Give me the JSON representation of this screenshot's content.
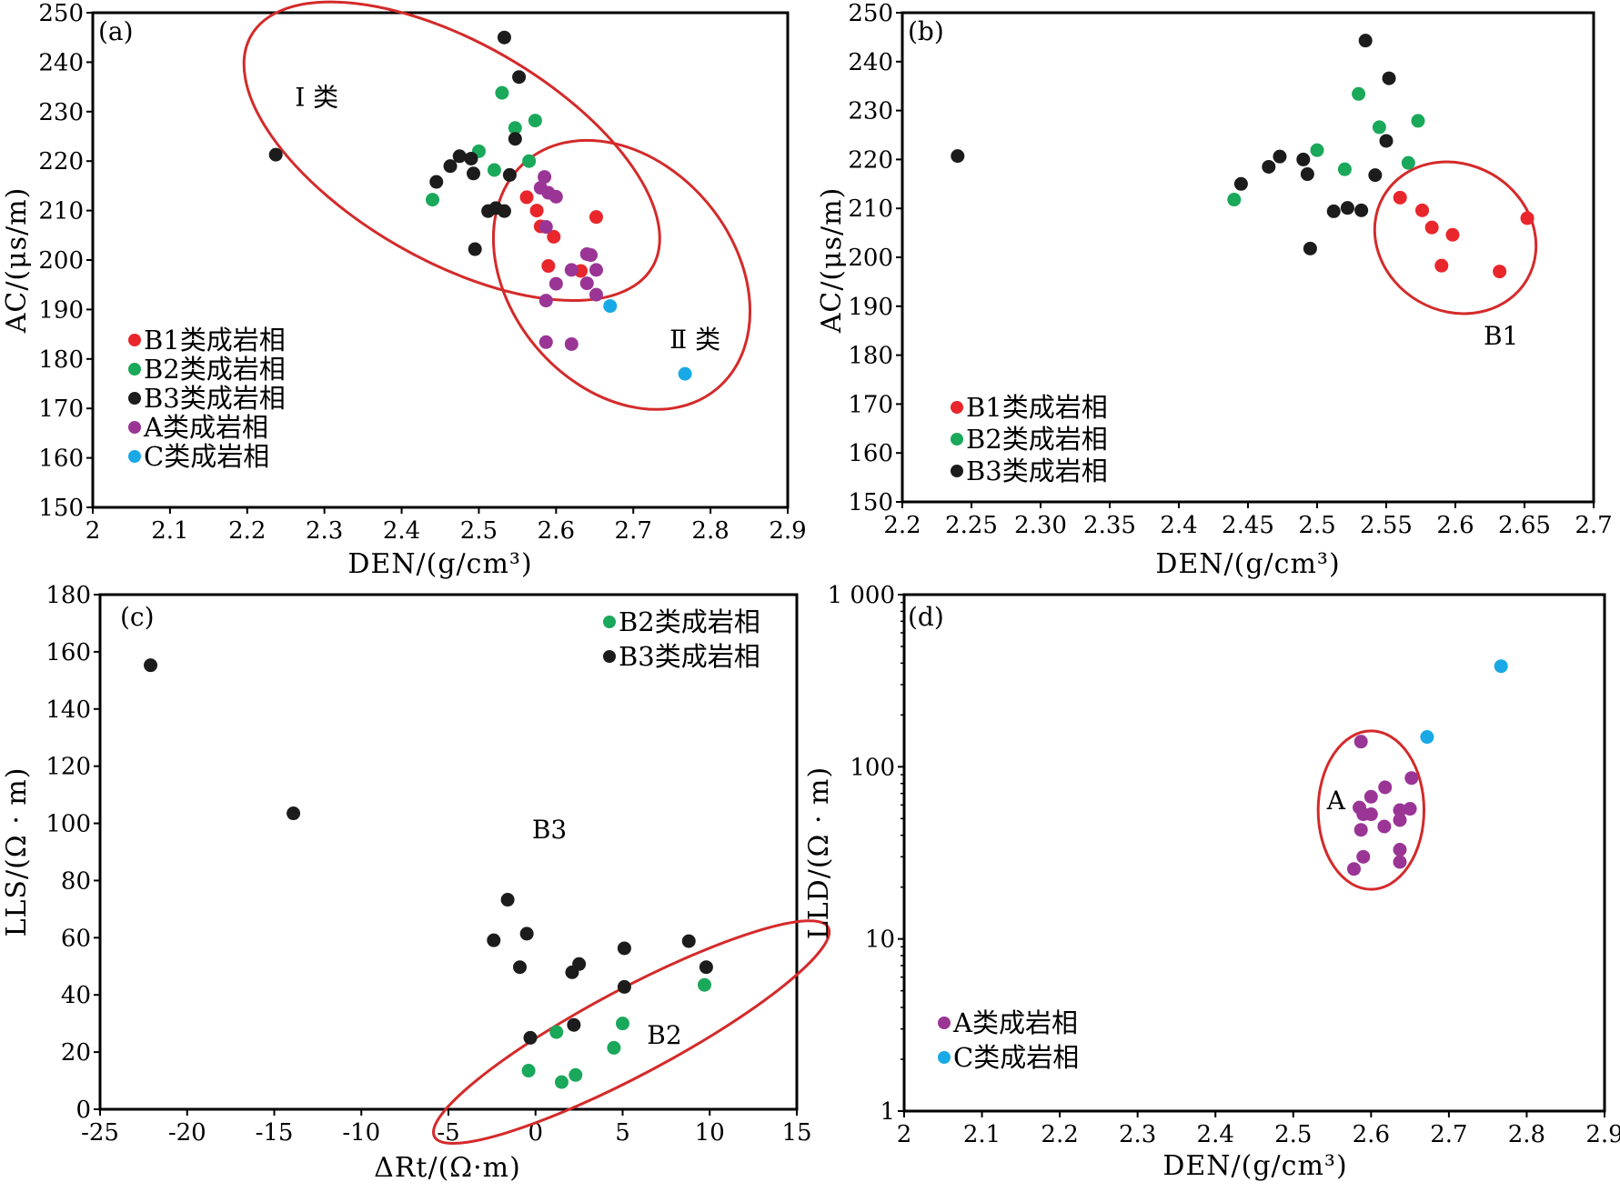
{
  "colors": {
    "B1": "#e8262c",
    "B2": "#1aa85a",
    "B3": "#1c1c1c",
    "A": "#9a3596",
    "C": "#19a9e6",
    "ellipse": "#d42a2a",
    "axis": "#000000"
  },
  "chart_data": [
    {
      "id": "a",
      "type": "scatter",
      "panel_label": "(a)",
      "xlabel": "DEN/(g/cm³)",
      "ylabel": "AC/(μs/m)",
      "xlim": [
        2,
        2.9
      ],
      "ylim": [
        150,
        250
      ],
      "x_ticks": [
        "2",
        "2.1",
        "2.2",
        "2.3",
        "2.4",
        "2.5",
        "2.6",
        "2.7",
        "2.8",
        "2.9"
      ],
      "y_ticks": [
        "150",
        "160",
        "170",
        "180",
        "190",
        "200",
        "210",
        "220",
        "230",
        "240",
        "250"
      ],
      "grid": false,
      "legend_position": "bottom-left",
      "legend": [
        {
          "key": "B1",
          "label": "B1类成岩相"
        },
        {
          "key": "B2",
          "label": "B2类成岩相"
        },
        {
          "key": "B3",
          "label": "B3类成岩相"
        },
        {
          "key": "A",
          "label": "A类成岩相"
        },
        {
          "key": "C",
          "label": "C类成岩相"
        }
      ],
      "annotations": [
        {
          "text": "Ⅰ 类",
          "x": 2.29,
          "y": 233
        },
        {
          "text": "Ⅱ 类",
          "x": 2.78,
          "y": 184
        }
      ],
      "ellipses": [
        {
          "cx": 2.465,
          "cy": 222,
          "rx": 0.3,
          "ry": 22,
          "angle_deg": 30
        },
        {
          "cx": 2.685,
          "cy": 197,
          "rx": 0.145,
          "ry": 30,
          "angle_deg": -40
        }
      ],
      "series": [
        {
          "key": "B1",
          "name": "B1类成岩相",
          "points": [
            [
              2.562,
              212.7
            ],
            [
              2.575,
              210
            ],
            [
              2.58,
              206.8
            ],
            [
              2.597,
              204.7
            ],
            [
              2.59,
              198.8
            ],
            [
              2.632,
              197.8
            ],
            [
              2.652,
              208.7
            ]
          ]
        },
        {
          "key": "B2",
          "name": "B2类成岩相",
          "points": [
            [
              2.44,
              212.2
            ],
            [
              2.5,
              222
            ],
            [
              2.52,
              218.2
            ],
            [
              2.53,
              233.8
            ],
            [
              2.547,
              226.7
            ],
            [
              2.565,
              220
            ],
            [
              2.573,
              228.2
            ]
          ]
        },
        {
          "key": "B3",
          "name": "B3类成岩相",
          "points": [
            [
              2.237,
              221.3
            ],
            [
              2.445,
              215.8
            ],
            [
              2.463,
              219
            ],
            [
              2.475,
              221
            ],
            [
              2.49,
              220.5
            ],
            [
              2.493,
              217.5
            ],
            [
              2.495,
              202.2
            ],
            [
              2.512,
              209.9
            ],
            [
              2.522,
              210.5
            ],
            [
              2.533,
              209.9
            ],
            [
              2.54,
              217.2
            ],
            [
              2.547,
              224.5
            ],
            [
              2.533,
              245
            ],
            [
              2.552,
              237
            ]
          ]
        },
        {
          "key": "A",
          "name": "A类成岩相",
          "points": [
            [
              2.585,
              216.8
            ],
            [
              2.58,
              214.6
            ],
            [
              2.59,
              213.6
            ],
            [
              2.6,
              212.8
            ],
            [
              2.587,
              206.7
            ],
            [
              2.62,
              198
            ],
            [
              2.64,
              201.2
            ],
            [
              2.645,
              201
            ],
            [
              2.652,
              198
            ],
            [
              2.6,
              195.2
            ],
            [
              2.64,
              195.3
            ],
            [
              2.652,
              193
            ],
            [
              2.587,
              191.8
            ],
            [
              2.587,
              183.4
            ],
            [
              2.62,
              183
            ]
          ]
        },
        {
          "key": "C",
          "name": "C类成岩相",
          "points": [
            [
              2.67,
              190.7
            ],
            [
              2.767,
              177
            ]
          ]
        }
      ]
    },
    {
      "id": "b",
      "type": "scatter",
      "panel_label": "(b)",
      "xlabel": "DEN/(g/cm³)",
      "ylabel": "AC/(μs/m)",
      "xlim": [
        2.2,
        2.7
      ],
      "ylim": [
        150,
        250
      ],
      "x_ticks": [
        "2.2",
        "2.25",
        "2.30",
        "2.35",
        "2.4",
        "2.45",
        "2.5",
        "2.55",
        "2.6",
        "2.65",
        "2.7"
      ],
      "y_ticks": [
        "150",
        "160",
        "170",
        "180",
        "190",
        "200",
        "210",
        "220",
        "230",
        "240",
        "250"
      ],
      "grid": false,
      "legend_position": "bottom-left",
      "legend": [
        {
          "key": "B1",
          "label": "B1类成岩相"
        },
        {
          "key": "B2",
          "label": "B2类成岩相"
        },
        {
          "key": "B3",
          "label": "B3类成岩相"
        }
      ],
      "annotations": [
        {
          "text": "B1",
          "x": 2.633,
          "y": 184
        }
      ],
      "ellipses": [
        {
          "cx": 2.6,
          "cy": 204,
          "rx": 0.06,
          "ry": 15,
          "angle_deg": 30
        }
      ],
      "series": [
        {
          "key": "B1",
          "name": "B1类成岩相",
          "points": [
            [
              2.56,
              212.2
            ],
            [
              2.576,
              209.6
            ],
            [
              2.583,
              206.1
            ],
            [
              2.598,
              204.6
            ],
            [
              2.59,
              198.3
            ],
            [
              2.632,
              197.1
            ],
            [
              2.652,
              208
            ]
          ]
        },
        {
          "key": "B2",
          "name": "B2类成岩相",
          "points": [
            [
              2.44,
              211.8
            ],
            [
              2.5,
              221.9
            ],
            [
              2.52,
              218
            ],
            [
              2.53,
              233.4
            ],
            [
              2.545,
              226.6
            ],
            [
              2.566,
              219.3
            ],
            [
              2.573,
              227.9
            ]
          ]
        },
        {
          "key": "B3",
          "name": "B3类成岩相",
          "points": [
            [
              2.24,
              220.7
            ],
            [
              2.445,
              215
            ],
            [
              2.465,
              218.5
            ],
            [
              2.473,
              220.6
            ],
            [
              2.49,
              220
            ],
            [
              2.493,
              217
            ],
            [
              2.495,
              201.8
            ],
            [
              2.512,
              209.4
            ],
            [
              2.522,
              210.1
            ],
            [
              2.532,
              209.6
            ],
            [
              2.542,
              216.8
            ],
            [
              2.55,
              223.8
            ],
            [
              2.535,
              244.3
            ],
            [
              2.552,
              236.6
            ]
          ]
        }
      ]
    },
    {
      "id": "c",
      "type": "scatter",
      "panel_label": "(c)",
      "xlabel": "ΔRt/(Ω·m)",
      "ylabel": "LLS/(Ω · m)",
      "xlim": [
        -25,
        15
      ],
      "ylim": [
        0,
        180
      ],
      "x_ticks": [
        "-25",
        "-20",
        "-15",
        "-10",
        "-5",
        "0",
        "5",
        "10",
        "15"
      ],
      "y_ticks": [
        "0",
        "20",
        "40",
        "60",
        "80",
        "100",
        "120",
        "140",
        "160",
        "180"
      ],
      "grid": false,
      "legend_position": "top-right",
      "legend": [
        {
          "key": "B2",
          "label": "B2类成岩相"
        },
        {
          "key": "B3",
          "label": "B3类成岩相"
        }
      ],
      "annotations": [
        {
          "text": "B3",
          "x": 0.8,
          "y": 98
        },
        {
          "text": "B2",
          "x": 7.4,
          "y": 26
        }
      ],
      "ellipses": [
        {
          "cx": 5.5,
          "cy": 27,
          "rx": 12.8,
          "ry": 15,
          "angle_deg": -28
        }
      ],
      "series": [
        {
          "key": "B2",
          "name": "B2类成岩相",
          "points": [
            [
              9.7,
              43.5
            ],
            [
              5,
              30
            ],
            [
              4.5,
              21.5
            ],
            [
              1.2,
              27
            ],
            [
              -0.4,
              13.5
            ],
            [
              1.5,
              9.5
            ],
            [
              2.3,
              12
            ]
          ]
        },
        {
          "key": "B3",
          "name": "B3类成岩相",
          "points": [
            [
              -22.1,
              155.3
            ],
            [
              -13.9,
              103.5
            ],
            [
              -1.6,
              73.3
            ],
            [
              -2.4,
              59.1
            ],
            [
              -0.5,
              61.4
            ],
            [
              -0.9,
              49.7
            ],
            [
              2.1,
              47.9
            ],
            [
              2.5,
              50.8
            ],
            [
              5.1,
              56.3
            ],
            [
              5.1,
              42.8
            ],
            [
              8.8,
              58.8
            ],
            [
              9.8,
              49.7
            ],
            [
              2.2,
              29.5
            ],
            [
              -0.3,
              25
            ]
          ]
        }
      ]
    },
    {
      "id": "d",
      "type": "scatter",
      "panel_label": "(d)",
      "xlabel": "DEN/(g/cm³)",
      "ylabel": "LLD/(Ω · m)",
      "y_scale": "log",
      "xlim": [
        2,
        2.9
      ],
      "ylim": [
        1,
        1000
      ],
      "x_ticks": [
        "2",
        "2.1",
        "2.2",
        "2.3",
        "2.4",
        "2.5",
        "2.6",
        "2.7",
        "2.8",
        "2.9"
      ],
      "y_ticks": [
        {
          "value": 1,
          "label": "1"
        },
        {
          "value": 10,
          "label": "10"
        },
        {
          "value": 100,
          "label": "100"
        },
        {
          "value": 1000,
          "label": "1 000"
        }
      ],
      "grid": false,
      "legend_position": "bottom-left",
      "legend": [
        {
          "key": "A",
          "label": "A类成岩相"
        },
        {
          "key": "C",
          "label": "C类成岩相"
        }
      ],
      "annotations": [
        {
          "text": "A",
          "x": 2.555,
          "y": 64
        }
      ],
      "ellipses": [
        {
          "cx": 2.6,
          "cy": 56,
          "rx": 0.068,
          "ry_log": 0.46,
          "angle_deg": 0
        }
      ],
      "series": [
        {
          "key": "A",
          "name": "A类成岩相",
          "points": [
            [
              2.587,
              140
            ],
            [
              2.652,
              86
            ],
            [
              2.618,
              76
            ],
            [
              2.6,
              67
            ],
            [
              2.585,
              58
            ],
            [
              2.65,
              57
            ],
            [
              2.637,
              56
            ],
            [
              2.59,
              53
            ],
            [
              2.6,
              53
            ],
            [
              2.637,
              49
            ],
            [
              2.617,
              45
            ],
            [
              2.587,
              43
            ],
            [
              2.637,
              33
            ],
            [
              2.59,
              30
            ],
            [
              2.637,
              28
            ],
            [
              2.578,
              25.5
            ]
          ]
        },
        {
          "key": "C",
          "name": "C类成岩相",
          "points": [
            [
              2.672,
              149
            ],
            [
              2.767,
              384
            ]
          ]
        }
      ]
    }
  ]
}
